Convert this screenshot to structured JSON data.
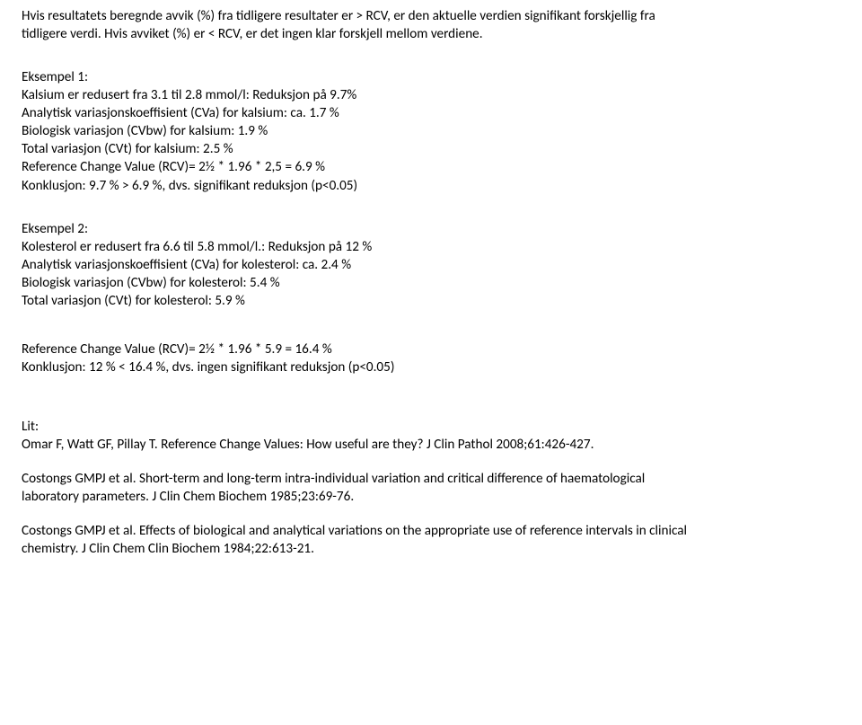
{
  "intro": {
    "line1": "Hvis resultatets beregnde avvik (%) fra tidligere resultater er > RCV, er den aktuelle verdien signifikant forskjellig fra",
    "line2": "tidligere verdi. Hvis avviket (%) er < RCV, er det ingen klar forskjell mellom verdiene."
  },
  "example1": {
    "title": "Eksempel 1:",
    "l1": "Kalsium er redusert fra 3.1 til 2.8 mmol/l: Reduksjon på 9.7%",
    "l2": "Analytisk variasjonskoeffisient (CVa) for kalsium: ca. 1.7 %",
    "l3": "Biologisk variasjon (CVbw) for kalsium: 1.9 %",
    "l4": "Total variasjon (CVt) for kalsium: 2.5 %",
    "l5": "Reference Change Value (RCV)= 2½ * 1.96 * 2,5 = 6.9 %",
    "l6": "Konklusjon: 9.7 % > 6.9 %, dvs. signifikant reduksjon (p<0.05)"
  },
  "example2": {
    "title": "Eksempel 2:",
    "l1": "Kolesterol er redusert fra 6.6 til 5.8 mmol/l.: Reduksjon på 12 %",
    "l2": "Analytisk variasjonskoeffisient (CVa) for kolesterol: ca. 2.4 %",
    "l3": "Biologisk variasjon (CVbw) for kolesterol: 5.4 %",
    "l4": "Total variasjon (CVt) for kolesterol: 5.9 %"
  },
  "rcv2": {
    "l1": "Reference Change Value (RCV)= 2½ * 1.96 * 5.9 = 16.4 %",
    "l2": "Konklusjon: 12 % < 16.4 %, dvs. ingen signifikant reduksjon (p<0.05)"
  },
  "lit": {
    "title": "Lit:",
    "ref1": "Omar F, Watt GF, Pillay T. Reference Change Values: How useful are they? J Clin Pathol 2008;61:426-427.",
    "ref2a": "Costongs GMPJ et al. Short-term and long-term intra-individual variation and critical difference of haematological",
    "ref2b": "laboratory parameters. J Clin Chem Biochem 1985;23:69-76.",
    "ref3a": "Costongs GMPJ et al. Effects of biological and analytical variations on the appropriate use of reference intervals in clinical",
    "ref3b": "chemistry. J Clin Chem Clin Biochem 1984;22:613-21."
  },
  "style": {
    "text_color": "#000000",
    "background": "#ffffff",
    "font_size_pt": 11,
    "font_family": "Calibri"
  }
}
